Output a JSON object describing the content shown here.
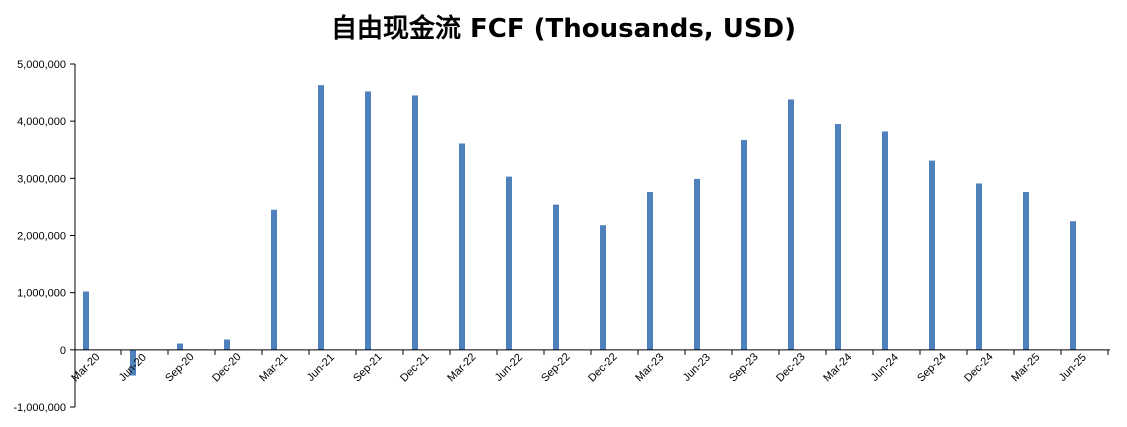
{
  "chart_data": {
    "type": "bar",
    "title": "自由现金流 FCF (Thousands, USD)",
    "xlabel": "",
    "ylabel": "",
    "ylim": [
      -1000000,
      5000000
    ],
    "yticks": [
      "-1,000,000",
      "0",
      "1,000,000",
      "2,000,000",
      "3,000,000",
      "4,000,000",
      "5,000,000"
    ],
    "grid": false,
    "legend": "none",
    "bar_color": "#4F81BD",
    "x_tick_labels": [
      "Mar-20",
      "Jun-20",
      "Sep-20",
      "Dec-20",
      "Mar-21",
      "Jun-21",
      "Sep-21",
      "Dec-21",
      "Mar-22",
      "Jun-22",
      "Sep-22",
      "Dec-22",
      "Mar-23",
      "Jun-23",
      "Sep-23",
      "Dec-23",
      "Mar-24",
      "Jun-24",
      "Sep-24",
      "Dec-24",
      "Mar-25",
      "Jun-25"
    ],
    "categories": [
      "Mar-20",
      "Jun-20",
      "Sep-20",
      "Dec-20",
      "Mar-21",
      "Jun-21",
      "Sep-21",
      "Dec-21",
      "Mar-22",
      "Jun-22",
      "Sep-22",
      "Dec-22",
      "Mar-23",
      "Jun-23",
      "Sep-23",
      "Dec-23",
      "Mar-24",
      "Jun-24",
      "Sep-24",
      "Dec-24",
      "Mar-25",
      "Jun-25"
    ],
    "values": [
      1020000,
      -450000,
      110000,
      180000,
      2450000,
      4630000,
      4520000,
      4450000,
      3610000,
      3030000,
      2540000,
      2180000,
      2760000,
      2990000,
      3670000,
      4380000,
      3950000,
      3820000,
      3310000,
      2910000,
      2760000,
      2250000
    ]
  }
}
